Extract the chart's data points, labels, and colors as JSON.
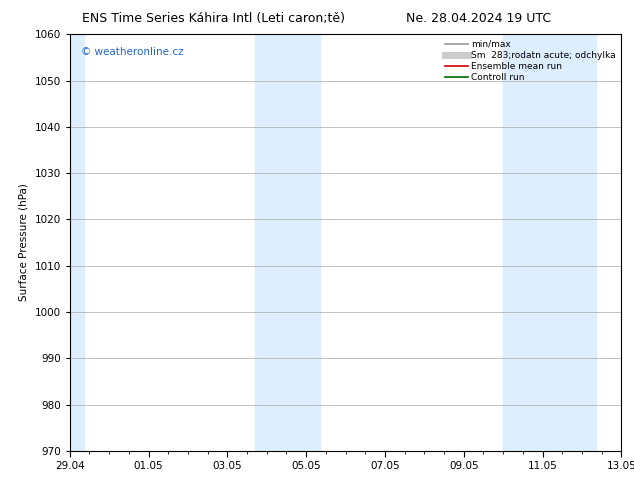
{
  "title_left": "ENS Time Series Káhira Intl (Leti caron;tě)",
  "title_right": "Ne. 28.04.2024 19 UTC",
  "ylabel": "Surface Pressure (hPa)",
  "ylim": [
    970,
    1060
  ],
  "yticks": [
    970,
    980,
    990,
    1000,
    1010,
    1020,
    1030,
    1040,
    1050,
    1060
  ],
  "xlim_start": 0,
  "xlim_end": 14,
  "xtick_labels": [
    "29.04",
    "01.05",
    "03.05",
    "05.05",
    "07.05",
    "09.05",
    "11.05",
    "13.05"
  ],
  "xtick_positions": [
    0,
    2,
    4,
    6,
    8,
    10,
    12,
    14
  ],
  "shade_bands": [
    {
      "xstart": 0.0,
      "xend": 0.35
    },
    {
      "xstart": 4.7,
      "xend": 6.35
    },
    {
      "xstart": 11.0,
      "xend": 13.35
    }
  ],
  "shade_color": "#ddeeff",
  "background_color": "#ffffff",
  "grid_color": "#aaaaaa",
  "watermark_text": "© weatheronline.cz",
  "watermark_color": "#2266cc",
  "legend_items": [
    {
      "label": "min/max",
      "color": "#999999",
      "lw": 1.2,
      "style": "solid"
    },
    {
      "label": "Sm  283;rodatn acute; odchylka",
      "color": "#cccccc",
      "lw": 5,
      "style": "solid"
    },
    {
      "label": "Ensemble mean run",
      "color": "#cc0000",
      "lw": 1.2,
      "style": "solid"
    },
    {
      "label": "Controll run",
      "color": "#006600",
      "lw": 1.2,
      "style": "solid"
    }
  ],
  "title_fontsize": 9,
  "axis_label_fontsize": 7.5,
  "tick_fontsize": 7.5,
  "legend_fontsize": 6.5,
  "watermark_fontsize": 7.5
}
